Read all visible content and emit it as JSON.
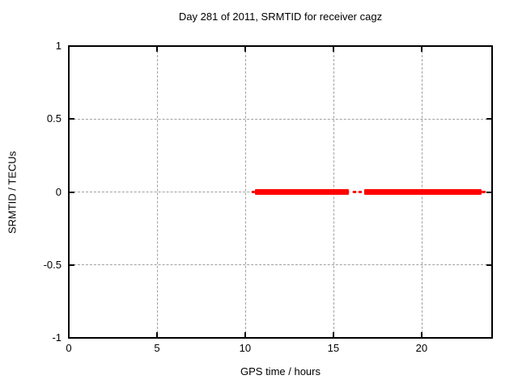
{
  "title": "Day 281 of 2011, SRMTID for receiver cagz",
  "chart_data": {
    "type": "line",
    "title": "Day 281 of 2011, SRMTID for receiver cagz",
    "xlabel": "GPS time / hours",
    "ylabel": "SRMTID / TECUs",
    "xlim": [
      0,
      24
    ],
    "ylim": [
      -1,
      1
    ],
    "grid": true,
    "legend": "none",
    "xticks": [
      {
        "value": 0,
        "label": "0"
      },
      {
        "value": 5,
        "label": "5"
      },
      {
        "value": 10,
        "label": "10"
      },
      {
        "value": 15,
        "label": "15"
      },
      {
        "value": 20,
        "label": "20"
      }
    ],
    "yticks": [
      {
        "value": 1,
        "label": "1"
      },
      {
        "value": 0.5,
        "label": "0.5"
      },
      {
        "value": 0,
        "label": "0"
      },
      {
        "value": -0.5,
        "label": "-0.5"
      },
      {
        "value": -1,
        "label": "-1"
      }
    ],
    "series": [
      {
        "name": "SRMTID",
        "color": "#ff0000",
        "y_value": 0,
        "segments": [
          {
            "x_start": 10.35,
            "x_end": 10.55,
            "y": 0,
            "style": "thin"
          },
          {
            "x_start": 10.55,
            "x_end": 15.9,
            "y": 0,
            "style": "thick"
          },
          {
            "x_start": 16.1,
            "x_end": 16.3,
            "y": 0,
            "style": "thin"
          },
          {
            "x_start": 16.45,
            "x_end": 16.6,
            "y": 0,
            "style": "thin"
          },
          {
            "x_start": 16.75,
            "x_end": 23.4,
            "y": 0,
            "style": "thick"
          },
          {
            "x_start": 23.4,
            "x_end": 23.65,
            "y": 0,
            "style": "thin"
          }
        ]
      }
    ],
    "colors": {
      "line": "#ff0000",
      "grid": "#a0a0a0",
      "border": "#000000",
      "background": "#ffffff",
      "text": "#000000"
    }
  }
}
